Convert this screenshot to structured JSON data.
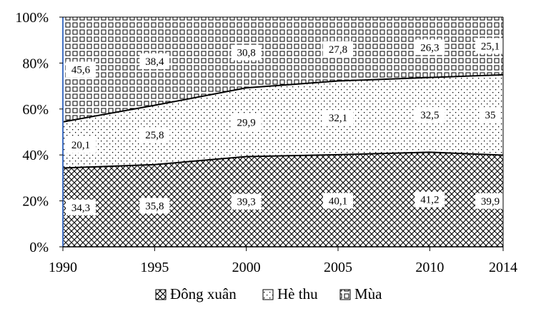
{
  "chart_data": {
    "type": "area",
    "stacking": "percent",
    "x": [
      1990,
      1995,
      2000,
      2005,
      2010,
      2014
    ],
    "series": [
      {
        "name": "Đông xuân",
        "values": [
          34.3,
          35.8,
          39.3,
          40.1,
          41.2,
          39.9
        ],
        "pattern": "crosshatch",
        "labels": [
          "34,3",
          "35,8",
          "39,3",
          "40,1",
          "41,2",
          "39,9"
        ]
      },
      {
        "name": "Hè thu",
        "values": [
          20.1,
          25.8,
          29.9,
          32.1,
          32.5,
          35.0
        ],
        "pattern": "dots",
        "labels": [
          "20,1",
          "25,8",
          "29,9",
          "32,1",
          "32,5",
          "35"
        ]
      },
      {
        "name": "Mùa",
        "values": [
          45.6,
          38.4,
          30.8,
          27.8,
          26.3,
          25.1
        ],
        "pattern": "small-squares",
        "labels": [
          "45,6",
          "38,4",
          "30,8",
          "27,8",
          "26,3",
          "25,1"
        ]
      }
    ],
    "y_ticks": [
      "0%",
      "20%",
      "40%",
      "60%",
      "80%",
      "100%"
    ],
    "x_ticks": [
      "1990",
      "1995",
      "2000",
      "2005",
      "2010",
      "2014"
    ],
    "ylim": [
      0,
      100
    ],
    "legend_position": "bottom",
    "title": "",
    "xlabel": "",
    "ylabel": "",
    "colors": {
      "fill": "#000000",
      "background": "#ffffff",
      "axis_left": "#4472c4"
    }
  }
}
